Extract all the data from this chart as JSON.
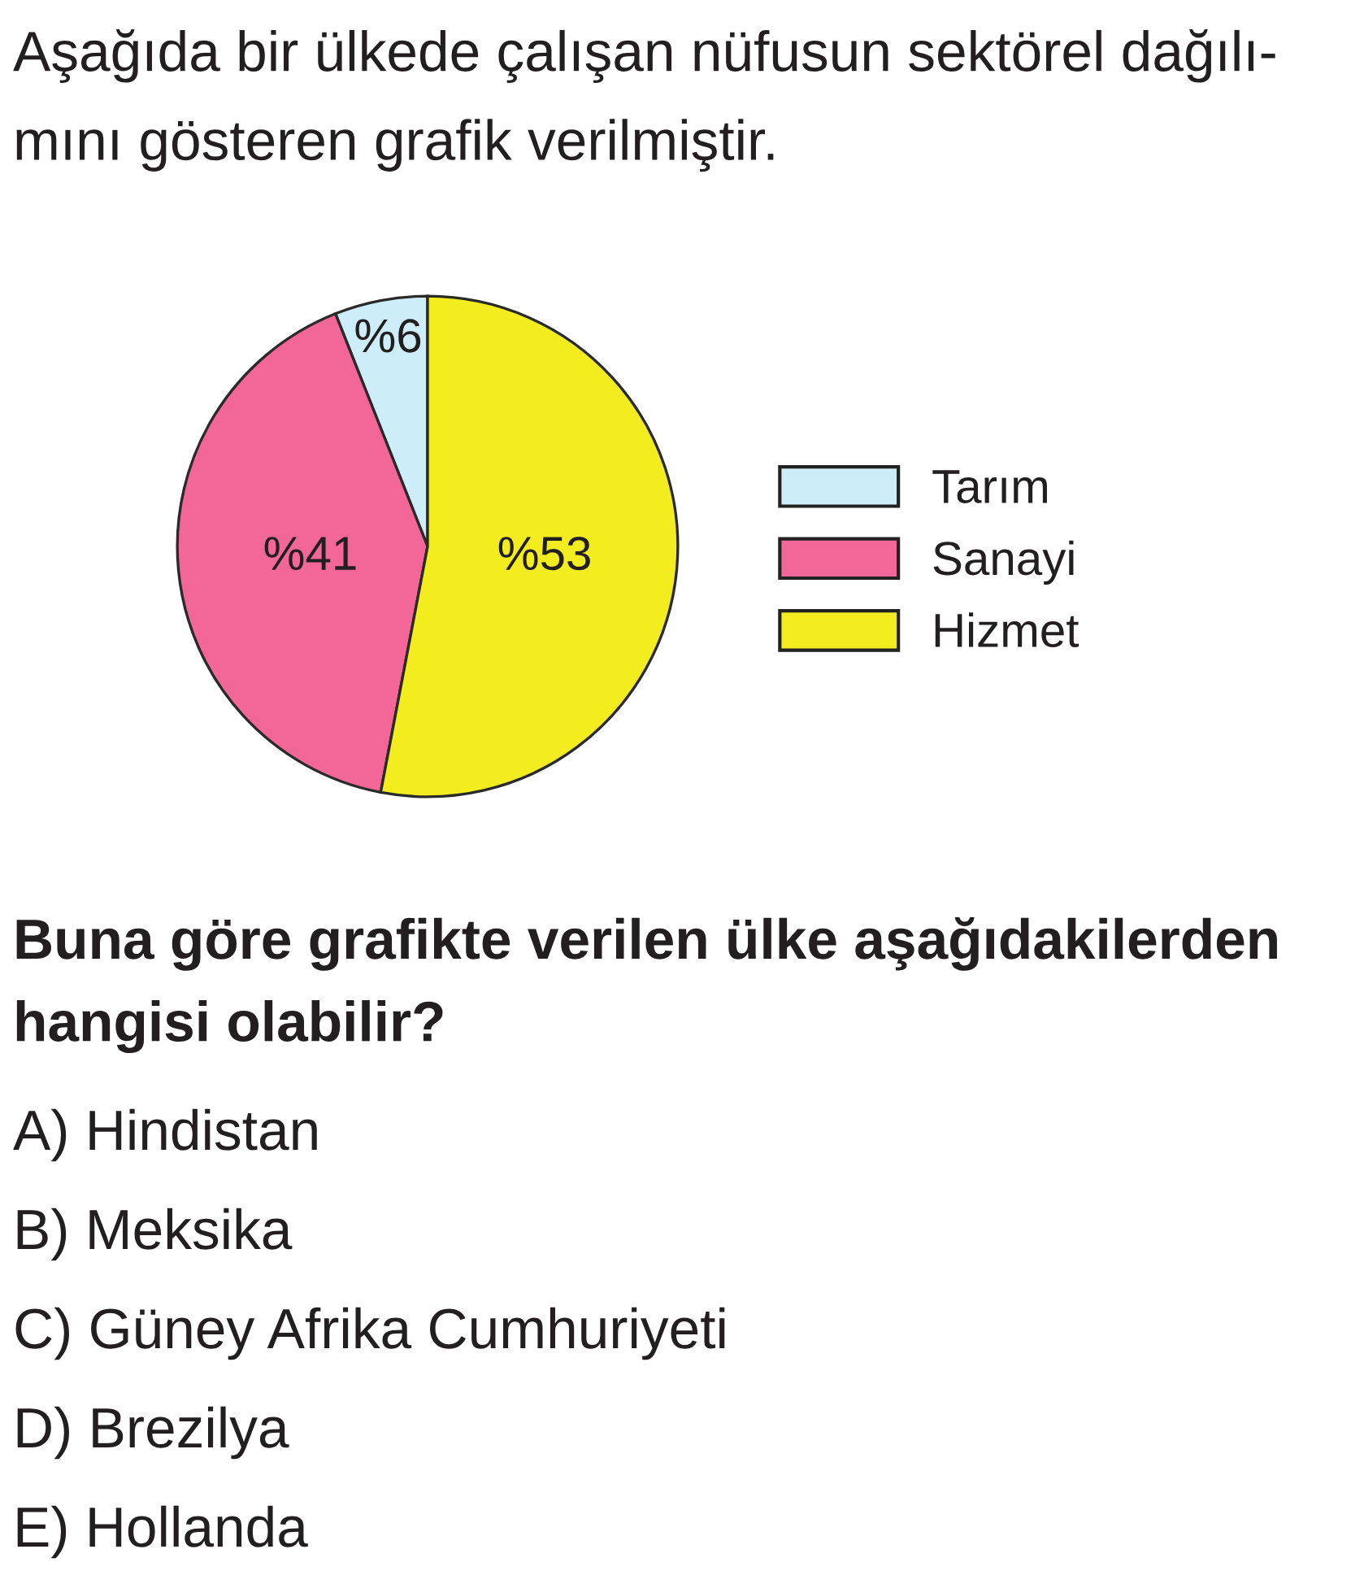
{
  "chart_data": {
    "type": "pie",
    "title": "Aşağıda bir ülkede çalışan nüfusun sektörel dağılı-\nmını gösteren grafik verilmiştir.",
    "categories": [
      "Tarım",
      "Sanayi",
      "Hizmet"
    ],
    "values": [
      6,
      41,
      53
    ],
    "colors": [
      "#cdeef9",
      "#f26798",
      "#f3ec1f"
    ],
    "value_labels": [
      "%6",
      "%41",
      "%53"
    ],
    "legend": "right",
    "annotations": [
      "Buna göre grafikte verilen ülke aşağıdakilerden\nhangisi olabilir?",
      "A) Hindistan",
      "B) Meksika",
      "C) Güney Afrika Cumhuriyeti",
      "D) Brezilya",
      "E) Hollanda"
    ]
  }
}
